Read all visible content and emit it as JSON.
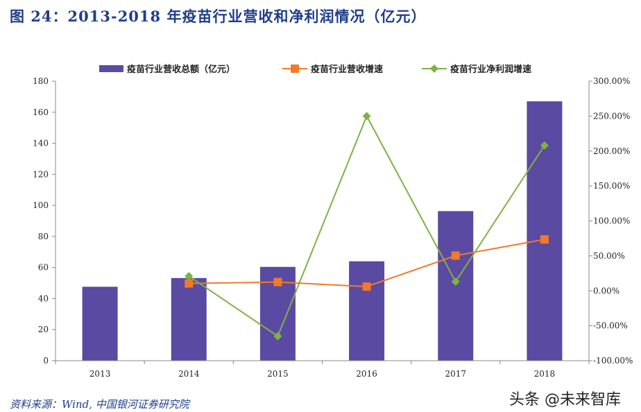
{
  "header": {
    "title": "图 24：2013-2018 年疫苗行业营收和净利润情况（亿元）"
  },
  "footer": {
    "source": "资料来源：Wind, 中国银河证券研究院",
    "watermark": "头条 @未来智库"
  },
  "chart_data": {
    "type": "bar",
    "categories": [
      "2013",
      "2014",
      "2015",
      "2016",
      "2017",
      "2018"
    ],
    "series": [
      {
        "name": "疫苗行业营收总额（亿元）",
        "type": "bar",
        "axis": "left",
        "color": "#5b4aa1",
        "values": [
          47.6,
          53.2,
          60.4,
          64.0,
          96.3,
          167.0
        ]
      },
      {
        "name": "疫苗行业营收增速",
        "type": "line",
        "axis": "right",
        "color": "#f07a2a",
        "marker": "square",
        "values": [
          null,
          10.5,
          12.5,
          6.0,
          50.3,
          73.5
        ]
      },
      {
        "name": "疫苗行业净利润增速",
        "type": "line",
        "axis": "right",
        "color": "#7db342",
        "marker": "diamond",
        "values": [
          null,
          21.0,
          -65.0,
          250.0,
          13.0,
          208.0
        ]
      }
    ],
    "y_left": {
      "min": 0,
      "max": 180,
      "step": 20,
      "ticks": [
        "0",
        "20",
        "40",
        "60",
        "80",
        "100",
        "120",
        "140",
        "160",
        "180"
      ]
    },
    "y_right": {
      "min": -100,
      "max": 300,
      "step": 50,
      "ticks": [
        "-100.00%",
        "-50.00%",
        "0.00%",
        "50.00%",
        "100.00%",
        "150.00%",
        "200.00%",
        "250.00%",
        "300.00%"
      ]
    },
    "legend_position": "top",
    "grid": false
  }
}
